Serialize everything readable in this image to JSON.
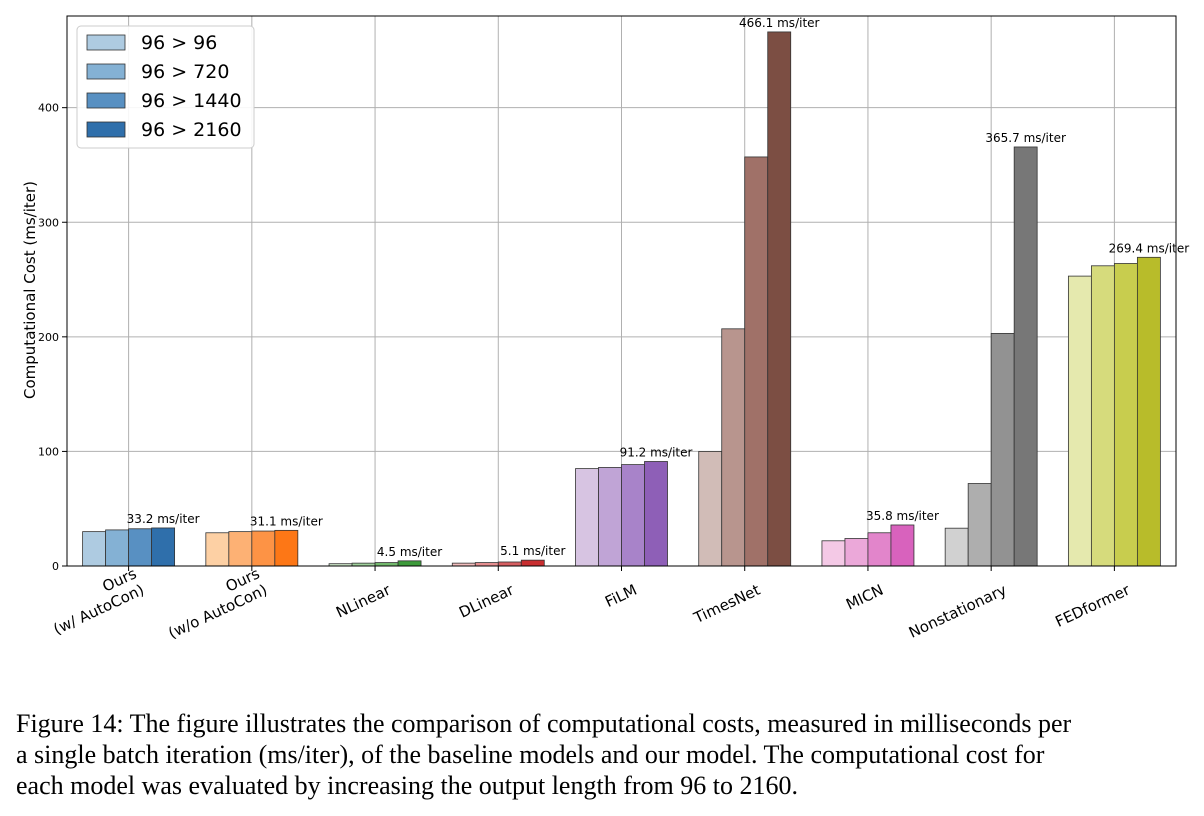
{
  "chart_data": {
    "type": "bar",
    "ylabel": "Computational Cost (ms/iter)",
    "ylim": [
      0,
      480
    ],
    "yticks": [
      0,
      100,
      200,
      300,
      400
    ],
    "grid": true,
    "legend_position": "top-left",
    "categories": [
      "Ours\n(w/ AutoCon)",
      "Ours\n(w/o AutoCon)",
      "NLinear",
      "DLinear",
      "FiLM",
      "TimesNet",
      "MICN",
      "Nonstationary",
      "FEDformer"
    ],
    "series": [
      {
        "name": "96 > 96",
        "values": [
          30,
          29,
          2,
          2.5,
          85,
          100,
          22,
          33,
          253
        ]
      },
      {
        "name": "96 > 720",
        "values": [
          31.5,
          30,
          2.5,
          3,
          86,
          207,
          24,
          72,
          262
        ]
      },
      {
        "name": "96 > 1440",
        "values": [
          32.5,
          30.5,
          3,
          3.5,
          88.5,
          357,
          29,
          203,
          264
        ]
      },
      {
        "name": "96 > 2160",
        "values": [
          33.2,
          31.1,
          4.5,
          5.1,
          91.2,
          466.1,
          35.8,
          365.7,
          269.4
        ]
      }
    ],
    "annotations": [
      "33.2 ms/iter",
      "31.1 ms/iter",
      "4.5 ms/iter",
      "5.1 ms/iter",
      "91.2 ms/iter",
      "466.1 ms/iter",
      "35.8 ms/iter",
      "365.7 ms/iter",
      "269.4 ms/iter"
    ],
    "colors": [
      [
        "#aecbe1",
        "#84b1d4",
        "#5890c2",
        "#2f6fab"
      ],
      [
        "#fdd0a4",
        "#fdb174",
        "#fd9345",
        "#fd7716"
      ],
      [
        "#cde6c9",
        "#9fd09b",
        "#72b86c",
        "#3c9a3a"
      ],
      [
        "#f2bcbc",
        "#e58e8f",
        "#d65e61",
        "#c82e30"
      ],
      [
        "#d7c4e2",
        "#c0a4d6",
        "#a883c9",
        "#8e5fb7"
      ],
      [
        "#d1bcb7",
        "#b8958e",
        "#a07168",
        "#7c4e43"
      ],
      [
        "#f4c9e6",
        "#eba8d9",
        "#e285cb",
        "#d862bd"
      ],
      [
        "#d1d1d1",
        "#aeaeae",
        "#929292",
        "#777777"
      ],
      [
        "#e5e9ae",
        "#d6db7c",
        "#c8cd4e",
        "#b8bc2a"
      ]
    ]
  },
  "caption": [
    "Figure 14: The figure illustrates the comparison of computational costs, measured in milliseconds per",
    "a single batch iteration (ms/iter), of the baseline models and our model. The computational cost for",
    "each model was evaluated by increasing the output length from 96 to 2160."
  ]
}
